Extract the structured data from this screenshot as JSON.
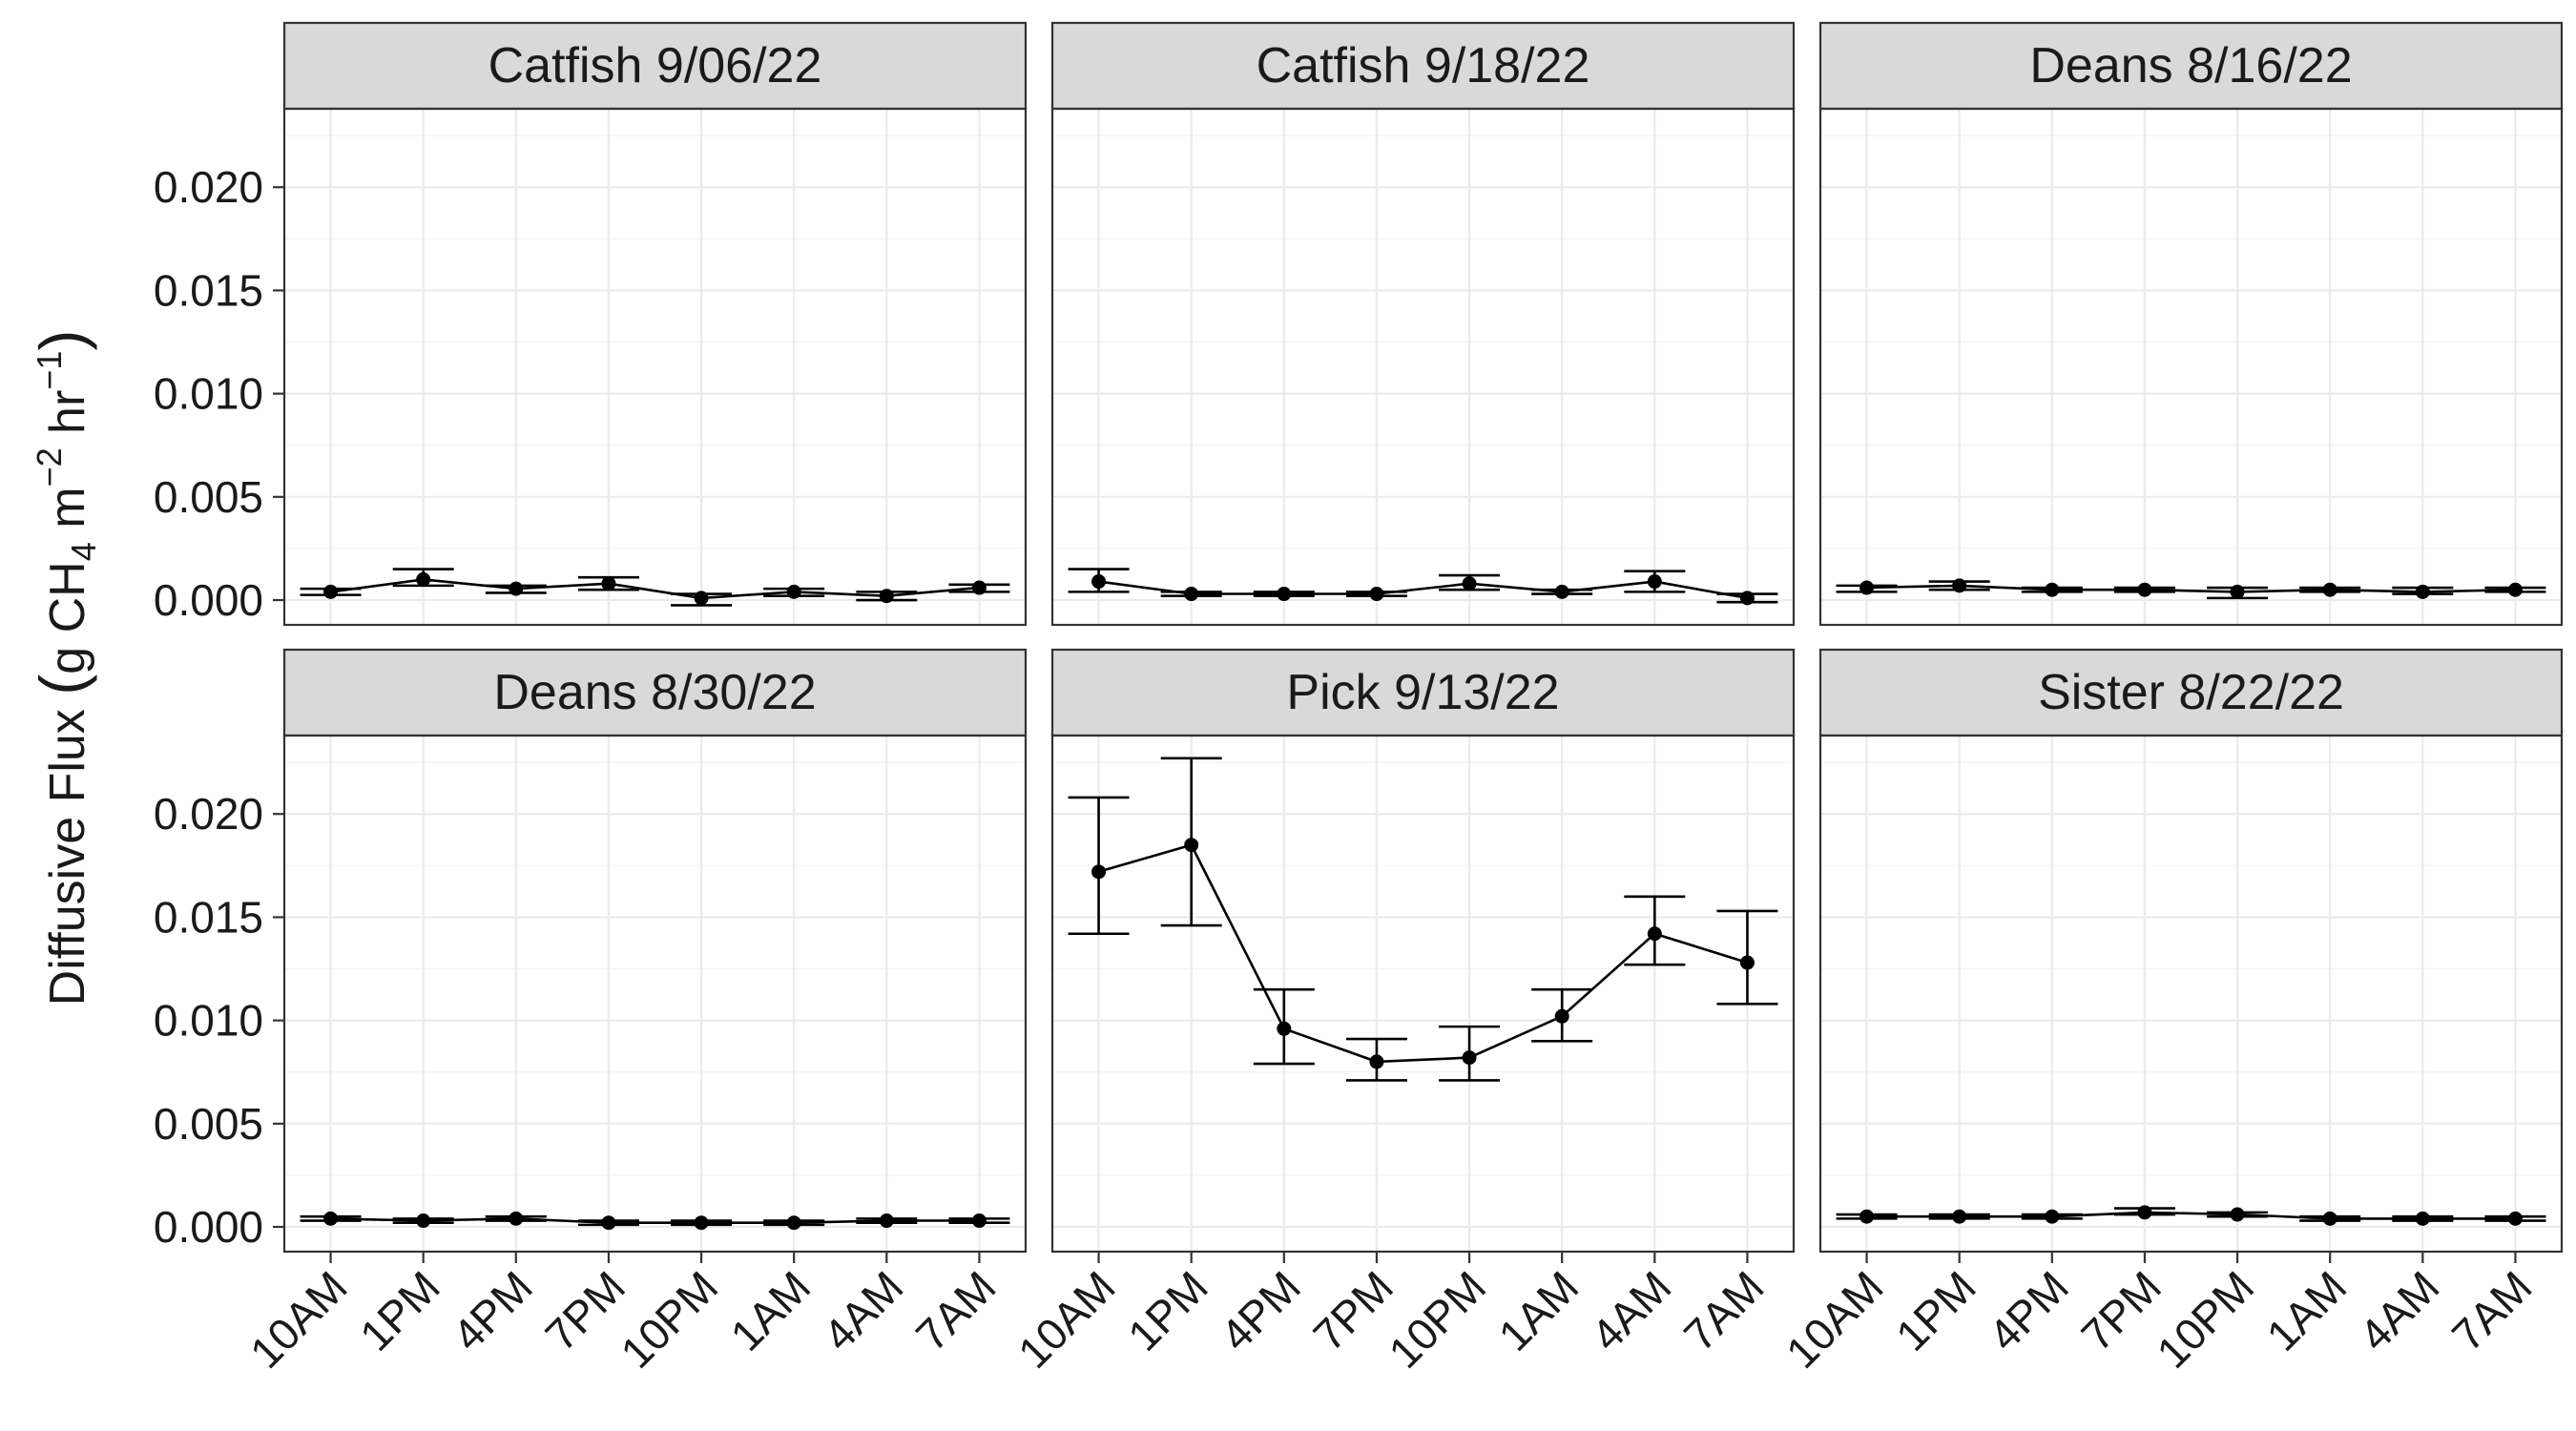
{
  "chart_data": {
    "type": "line",
    "ylabel": "Diffusive Flux (g CH4 m-2 hr-1)",
    "ylabel_parts": {
      "open_paren": "(",
      "g": "g",
      "ch": "CH",
      "ch_sub": "4",
      "m": "m",
      "m_sup": "−2",
      "hr": "hr",
      "hr_sup": "−1",
      "close_paren": ")",
      "prefix": "Diffusive Flux"
    },
    "xlabel": "",
    "categories": [
      "10AM",
      "1PM",
      "4PM",
      "7PM",
      "10PM",
      "1AM",
      "4AM",
      "7AM"
    ],
    "ylim": [
      -0.0012,
      0.0238
    ],
    "yticks": [
      0.0,
      0.005,
      0.01,
      0.015,
      0.02
    ],
    "ytick_labels": [
      "0.000",
      "0.005",
      "0.010",
      "0.015",
      "0.020"
    ],
    "grid": true,
    "panels": [
      {
        "title": "Catfish 9/06/22",
        "values": [
          0.0004,
          0.001,
          0.00055,
          0.0008,
          0.0001,
          0.0004,
          0.0002,
          0.0006
        ],
        "err_low": [
          0.00025,
          0.0007,
          0.00035,
          0.0005,
          -0.00025,
          0.0002,
          0.0,
          0.0004
        ],
        "err_high": [
          0.00055,
          0.0015,
          0.0007,
          0.0011,
          0.0003,
          0.00055,
          0.0004,
          0.00075
        ]
      },
      {
        "title": "Catfish 9/18/22",
        "values": [
          0.0009,
          0.0003,
          0.0003,
          0.0003,
          0.0008,
          0.0004,
          0.0009,
          0.0001
        ],
        "err_low": [
          0.0004,
          0.0002,
          0.0002,
          0.0002,
          0.0005,
          0.0003,
          0.0004,
          -0.0001
        ],
        "err_high": [
          0.0015,
          0.0004,
          0.0004,
          0.0004,
          0.0012,
          0.0005,
          0.0014,
          0.0003
        ]
      },
      {
        "title": "Deans 8/16/22",
        "values": [
          0.0006,
          0.0007,
          0.0005,
          0.0005,
          0.0004,
          0.0005,
          0.0004,
          0.0005
        ],
        "err_low": [
          0.0004,
          0.0005,
          0.0004,
          0.0004,
          0.0001,
          0.0004,
          0.0003,
          0.0004
        ],
        "err_high": [
          0.0007,
          0.0009,
          0.0006,
          0.0006,
          0.0006,
          0.0006,
          0.0006,
          0.0006
        ]
      },
      {
        "title": "Deans 8/30/22",
        "values": [
          0.0004,
          0.0003,
          0.0004,
          0.0002,
          0.0002,
          0.0002,
          0.0003,
          0.0003
        ],
        "err_low": [
          0.0003,
          0.0002,
          0.0003,
          0.0001,
          0.0001,
          0.0001,
          0.0002,
          0.0002
        ],
        "err_high": [
          0.0005,
          0.0004,
          0.0005,
          0.0003,
          0.0003,
          0.0003,
          0.0004,
          0.0004
        ]
      },
      {
        "title": "Pick 9/13/22",
        "values": [
          0.0172,
          0.0185,
          0.0096,
          0.008,
          0.0082,
          0.0102,
          0.0142,
          0.0128
        ],
        "err_low": [
          0.0142,
          0.0146,
          0.0079,
          0.0071,
          0.0071,
          0.009,
          0.0127,
          0.0108
        ],
        "err_high": [
          0.0208,
          0.0227,
          0.0115,
          0.0091,
          0.0097,
          0.0115,
          0.016,
          0.0153
        ]
      },
      {
        "title": "Sister 8/22/22",
        "values": [
          0.0005,
          0.0005,
          0.0005,
          0.0007,
          0.0006,
          0.0004,
          0.0004,
          0.0004
        ],
        "err_low": [
          0.0004,
          0.0004,
          0.0004,
          0.0006,
          0.0005,
          0.0003,
          0.0003,
          0.0003
        ],
        "err_high": [
          0.0006,
          0.0006,
          0.0006,
          0.0009,
          0.0007,
          0.0005,
          0.0005,
          0.0005
        ]
      }
    ]
  }
}
